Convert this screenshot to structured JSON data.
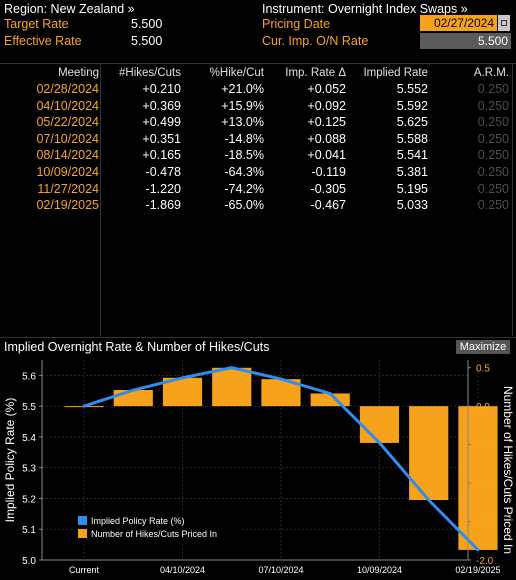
{
  "header": {
    "region_label": "Region: New Zealand »",
    "instrument_label": "Instrument: Overnight Index Swaps »",
    "target_rate_label": "Target Rate",
    "target_rate_value": "5.500",
    "effective_rate_label": "Effective Rate",
    "effective_rate_value": "5.500",
    "pricing_date_label": "Pricing Date",
    "pricing_date_value": "02/27/2024",
    "cur_imp_label": "Cur. Imp. O/N Rate",
    "cur_imp_value": "5.500"
  },
  "table": {
    "columns": [
      "Meeting",
      "#Hikes/Cuts",
      "%Hike/Cut",
      "Imp. Rate Δ",
      "Implied Rate",
      "A.R.M."
    ],
    "rows": [
      [
        "02/28/2024",
        "+0.210",
        "+21.0%",
        "+0.052",
        "5.552",
        "0.250"
      ],
      [
        "04/10/2024",
        "+0.369",
        "+15.9%",
        "+0.092",
        "5.592",
        "0.250"
      ],
      [
        "05/22/2024",
        "+0.499",
        "+13.0%",
        "+0.125",
        "5.625",
        "0.250"
      ],
      [
        "07/10/2024",
        "+0.351",
        "-14.8%",
        "+0.088",
        "5.588",
        "0.250"
      ],
      [
        "08/14/2024",
        "+0.165",
        "-18.5%",
        "+0.041",
        "5.541",
        "0.250"
      ],
      [
        "10/09/2024",
        "-0.478",
        "-64.3%",
        "-0.119",
        "5.381",
        "0.250"
      ],
      [
        "11/27/2024",
        "-1.220",
        "-74.2%",
        "-0.305",
        "5.195",
        "0.250"
      ],
      [
        "02/19/2025",
        "-1.869",
        "-65.0%",
        "-0.467",
        "5.033",
        "0.250"
      ]
    ]
  },
  "chart_panel": {
    "title": "Implied Overnight Rate & Number of Hikes/Cuts",
    "maximize_label": "Maximize"
  },
  "colors": {
    "accent_orange": "#f5a623",
    "line_blue": "#2f8cf0",
    "bar_orange": "#f7a21b"
  },
  "chart_data": {
    "type": "bar",
    "categories": [
      "Current",
      "02/28/2024",
      "04/10/2024",
      "05/22/2024",
      "07/10/2024",
      "08/14/2024",
      "10/09/2024",
      "11/27/2024",
      "02/19/2025"
    ],
    "x_tick_labels": [
      "Current",
      "04/10/2024",
      "07/10/2024",
      "10/09/2024",
      "02/19/2025"
    ],
    "series": [
      {
        "name": "Implied Policy Rate (%)",
        "type": "line",
        "axis": "left",
        "values": [
          5.5,
          5.552,
          5.592,
          5.625,
          5.588,
          5.541,
          5.381,
          5.195,
          5.033
        ]
      },
      {
        "name": "Number of Hikes/Cuts Priced In",
        "type": "bar",
        "axis": "right",
        "values": [
          0,
          0.21,
          0.369,
          0.499,
          0.351,
          0.165,
          -0.478,
          -1.22,
          -1.869
        ]
      }
    ],
    "ylabel": "Implied Policy Rate (%)",
    "y2label": "Number of Hikes/Cuts Priced In",
    "ylim": [
      5.0,
      5.65
    ],
    "y2lim": [
      -2.0,
      0.6
    ],
    "yticks": [
      "5.0",
      "5.1",
      "5.2",
      "5.3",
      "5.4",
      "5.5",
      "5.6"
    ],
    "y2ticks": [
      "0.5",
      "0.0",
      "-0.5",
      "-1.0",
      "-1.5",
      "-2.0"
    ],
    "legend": [
      "Implied Policy Rate (%)",
      "Number of Hikes/Cuts Priced In"
    ],
    "legend_position": "bottom-left"
  }
}
